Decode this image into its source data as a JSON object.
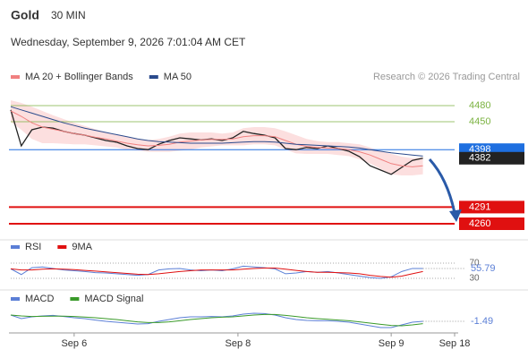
{
  "header": {
    "title": "Gold",
    "timeframe": "30 MIN",
    "datetime": "Wednesday, September 9, 2026 7:01:04 AM CET",
    "credit": "Research © 2026 Trading Central"
  },
  "chart_data": [
    {
      "type": "line",
      "xlim": [
        0,
        84
      ],
      "ylim": [
        4240,
        4510
      ],
      "x": [
        0,
        2,
        4,
        6,
        8,
        10,
        12,
        14,
        16,
        18,
        20,
        22,
        24,
        26,
        28,
        30,
        32,
        34,
        36,
        38,
        40,
        42,
        44,
        46,
        48,
        50,
        52,
        54,
        56,
        58,
        60,
        62,
        64,
        66,
        68,
        70,
        72,
        74,
        76,
        78
      ],
      "price": {
        "color": "#222222",
        "values": [
          4472,
          4405,
          4435,
          4440,
          4438,
          4432,
          4428,
          4425,
          4420,
          4415,
          4412,
          4405,
          4400,
          4398,
          4408,
          4415,
          4420,
          4418,
          4416,
          4418,
          4415,
          4420,
          4432,
          4428,
          4425,
          4420,
          4400,
          4398,
          4402,
          4400,
          4405,
          4400,
          4395,
          4385,
          4368,
          4360,
          4352,
          4365,
          4378,
          4382
        ]
      },
      "series": [
        {
          "name": "MA 20 + Bollinger Bands",
          "color": "#f08080",
          "band_color": "#fbd7d7",
          "values": [
            4470,
            4460,
            4448,
            4440,
            4436,
            4432,
            4428,
            4425,
            4421,
            4418,
            4414,
            4410,
            4407,
            4405,
            4406,
            4408,
            4412,
            4414,
            4416,
            4417,
            4417,
            4418,
            4422,
            4424,
            4424,
            4422,
            4415,
            4408,
            4404,
            4402,
            4401,
            4400,
            4398,
            4394,
            4388,
            4380,
            4372,
            4368,
            4366,
            4368
          ],
          "upper": [
            4490,
            4485,
            4478,
            4470,
            4462,
            4455,
            4448,
            4442,
            4436,
            4430,
            4426,
            4422,
            4418,
            4416,
            4418,
            4422,
            4428,
            4430,
            4430,
            4430,
            4428,
            4430,
            4438,
            4440,
            4440,
            4438,
            4432,
            4425,
            4418,
            4414,
            4412,
            4412,
            4410,
            4408,
            4402,
            4395,
            4390,
            4385,
            4382,
            4384
          ],
          "lower": [
            4450,
            4435,
            4418,
            4410,
            4410,
            4409,
            4408,
            4408,
            4406,
            4404,
            4402,
            4398,
            4396,
            4394,
            4394,
            4394,
            4396,
            4398,
            4402,
            4404,
            4406,
            4406,
            4406,
            4408,
            4408,
            4406,
            4398,
            4391,
            4390,
            4390,
            4390,
            4388,
            4386,
            4380,
            4372,
            4362,
            4352,
            4350,
            4350,
            4352
          ]
        },
        {
          "name": "MA 50",
          "color": "#2a4a8c",
          "values": [
            4478,
            4472,
            4466,
            4460,
            4454,
            4448,
            4443,
            4438,
            4434,
            4430,
            4426,
            4422,
            4418,
            4415,
            4413,
            4412,
            4411,
            4410,
            4410,
            4410,
            4410,
            4411,
            4412,
            4413,
            4413,
            4412,
            4410,
            4408,
            4407,
            4406,
            4405,
            4404,
            4403,
            4401,
            4398,
            4395,
            4392,
            4390,
            4388,
            4386
          ]
        }
      ],
      "levels": [
        {
          "value": 4480,
          "color": "#7cb342",
          "style": "text"
        },
        {
          "value": 4450,
          "color": "#7cb342",
          "style": "text"
        },
        {
          "value": 4398,
          "color": "#1e6fe0",
          "style": "box"
        },
        {
          "value": 4382,
          "color": "#222222",
          "style": "box"
        },
        {
          "value": 4291,
          "color": "#e01010",
          "style": "box"
        },
        {
          "value": 4260,
          "color": "#e01010",
          "style": "box"
        }
      ]
    },
    {
      "type": "line",
      "xlim": [
        0,
        84
      ],
      "ylim": [
        10,
        90
      ],
      "yticks": [
        30,
        70
      ],
      "x": [
        0,
        2,
        4,
        6,
        8,
        10,
        12,
        14,
        16,
        18,
        20,
        22,
        24,
        26,
        28,
        30,
        32,
        34,
        36,
        38,
        40,
        42,
        44,
        46,
        48,
        50,
        52,
        54,
        56,
        58,
        60,
        62,
        64,
        66,
        68,
        70,
        72,
        74,
        76,
        78
      ],
      "series": [
        {
          "name": "RSI",
          "color": "#5b7fd6",
          "values": [
            55,
            40,
            58,
            60,
            56,
            52,
            50,
            48,
            45,
            44,
            42,
            40,
            38,
            40,
            52,
            55,
            56,
            52,
            50,
            52,
            50,
            55,
            62,
            60,
            58,
            55,
            42,
            44,
            48,
            46,
            48,
            44,
            40,
            36,
            32,
            30,
            34,
            48,
            56,
            55.79
          ]
        },
        {
          "name": "9MA",
          "color": "#e01010",
          "values": [
            55,
            52,
            52,
            54,
            55,
            54,
            53,
            51,
            49,
            47,
            45,
            43,
            41,
            40,
            42,
            45,
            48,
            50,
            52,
            52,
            52,
            52,
            54,
            56,
            57,
            57,
            54,
            51,
            48,
            46,
            46,
            45,
            44,
            42,
            38,
            35,
            33,
            36,
            42,
            48
          ]
        }
      ]
    },
    {
      "type": "line",
      "xlim": [
        0,
        84
      ],
      "ylim": [
        -8,
        8
      ],
      "x": [
        0,
        2,
        4,
        6,
        8,
        10,
        12,
        14,
        16,
        18,
        20,
        22,
        24,
        26,
        28,
        30,
        32,
        34,
        36,
        38,
        40,
        42,
        44,
        46,
        48,
        50,
        52,
        54,
        56,
        58,
        60,
        62,
        64,
        66,
        68,
        70,
        72,
        74,
        76,
        78
      ],
      "xticks": [
        {
          "value": 12,
          "label": "Sep 6"
        },
        {
          "value": 43,
          "label": "Sep 8"
        },
        {
          "value": 72,
          "label": "Sep 9"
        },
        {
          "value": 84,
          "label": "Sep 18"
        }
      ],
      "series": [
        {
          "name": "MACD",
          "color": "#5b7fd6",
          "values": [
            2,
            0,
            1,
            1.5,
            1.8,
            1.2,
            0.5,
            0,
            -0.8,
            -1.5,
            -2,
            -2.5,
            -3,
            -2.8,
            -1.5,
            -0.5,
            0.5,
            1,
            1,
            1.2,
            1,
            1.5,
            2.5,
            3,
            2.8,
            2,
            0.5,
            -0.5,
            -1,
            -1.2,
            -1.2,
            -1.5,
            -2,
            -3,
            -4,
            -5,
            -5,
            -3.5,
            -2,
            -1.49
          ]
        },
        {
          "name": "MACD Signal",
          "color": "#3a9a2a",
          "values": [
            2,
            1.5,
            1.2,
            1.3,
            1.4,
            1.4,
            1.2,
            0.9,
            0.5,
            0,
            -0.5,
            -1.2,
            -1.8,
            -2.2,
            -2.2,
            -1.8,
            -1.2,
            -0.5,
            0,
            0.5,
            0.8,
            1,
            1.5,
            2,
            2.3,
            2.3,
            1.8,
            1.2,
            0.5,
            0,
            -0.4,
            -0.8,
            -1.2,
            -1.8,
            -2.5,
            -3.2,
            -3.8,
            -4,
            -3.5,
            -2.8
          ]
        }
      ]
    }
  ]
}
